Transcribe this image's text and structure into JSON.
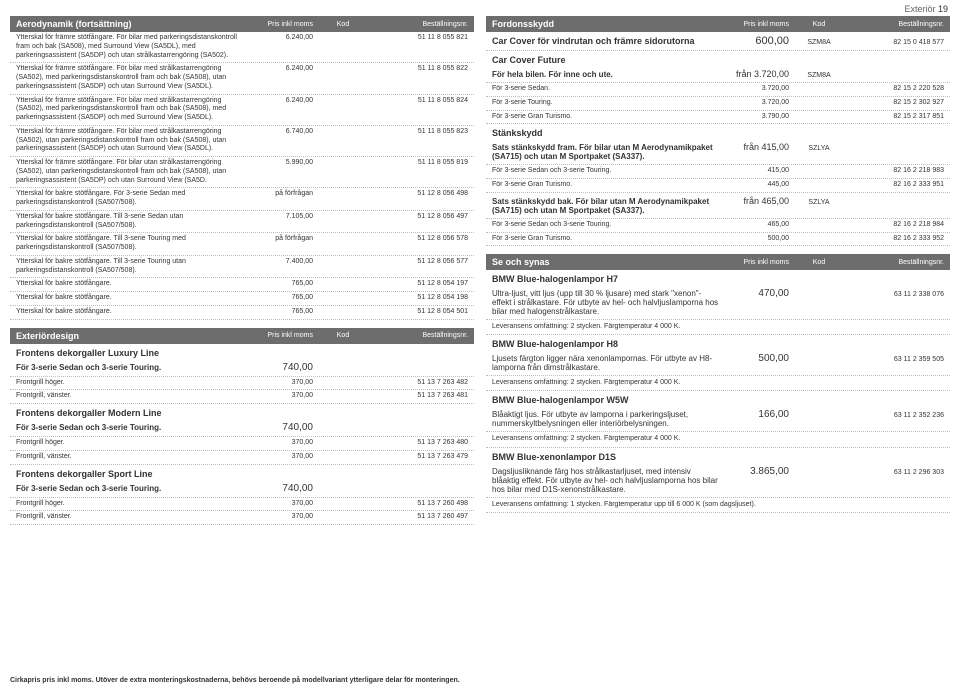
{
  "page_label": {
    "name": "Exteriör",
    "num": "19"
  },
  "footnote": "Cirkapris pris inkl moms. Utöver de extra monteringskostnaderna, behövs beroende på modellvariant ytterligare delar för monteringen.",
  "col_headers": {
    "price": "Pris inkl moms",
    "kod": "Kod",
    "best": "Beställningsnr."
  },
  "left": {
    "aero": {
      "title": "Aerodynamik (fortsättning)",
      "rows": [
        {
          "desc": "Ytterskal för främre stötfångare. För bilar med parkeringsdistanskontroll fram och bak (SA508), med Surround View (SA5DL), med parkeringsassistent (SA5DP) och utan strålkastarrengöring (SA502).",
          "price": "6.240,00",
          "kod": "",
          "best": "51 11 8 055 821"
        },
        {
          "desc": "Ytterskal för främre stötfångare. För bilar med strålkastarrengöring (SA502), med parkeringsdistanskontroll fram och bak (SA508), utan parkeringsassistent (SA5DP) och utan Surround View (SA5DL).",
          "price": "6.240,00",
          "kod": "",
          "best": "51 11 8 055 822"
        },
        {
          "desc": "Ytterskal för främre stötfångare. För bilar med strålkastarrengöring (SA502), med parkeringsdistanskontroll fram och bak (SA508), med parkeringsassistent (SA5DP) och med Surround View (SA5DL).",
          "price": "6.240,00",
          "kod": "",
          "best": "51 11 8 055 824"
        },
        {
          "desc": "Ytterskal för främre stötfångare. För bilar med strålkastarrengöring (SA502), utan parkeringsdistanskontroll fram och bak (SA508), utan parkeringsassistent (SA5DP) och utan Surround View (SA5DL).",
          "price": "6.740,00",
          "kod": "",
          "best": "51 11 8 055 823"
        },
        {
          "desc": "Ytterskal för främre stötfångare. För bilar utan strålkastarrengöring (SA502), utan parkeringsdistanskontroll fram och bak (SA508), utan parkeringsassistent (SA5DP) och utan Surround View (SA5D.",
          "price": "5.990,00",
          "kod": "",
          "best": "51 11 8 055 819"
        },
        {
          "desc": "Ytterskal för bakre stötfångare. För 3-serie Sedan med parkeringsdistanskontroll (SA507/508).",
          "price": "på förfrågan",
          "kod": "",
          "best": "51 12 8 056 498"
        },
        {
          "desc": "Ytterskal för bakre stötfångare. Till 3-serie Sedan utan parkeringsdistanskontroll (SA507/508).",
          "price": "7.105,00",
          "kod": "",
          "best": "51 12 8 056 497"
        },
        {
          "desc": "Ytterskal för bakre stötfångare. Till 3-serie Touring med parkeringsdistanskontroll (SA507/508).",
          "price": "på förfrågan",
          "kod": "",
          "best": "51 12 8 056 578"
        },
        {
          "desc": "Ytterskal för bakre stötfångare. Till 3-serie Touring utan parkeringsdistanskontroll (SA507/508).",
          "price": "7.400,00",
          "kod": "",
          "best": "51 12 8 056 577"
        },
        {
          "desc": "Ytterskal för bakre stötfångare.",
          "price": "765,00",
          "kod": "",
          "best": "51 12 8 054 197"
        },
        {
          "desc": "Ytterskal för bakre stötfångare.",
          "price": "765,00",
          "kod": "",
          "best": "51 12 8 054 198"
        },
        {
          "desc": "Ytterskal för bakre stötfångare.",
          "price": "765,00",
          "kod": "",
          "best": "51 12 8 054 501"
        }
      ]
    },
    "design": {
      "title": "Exteriördesign",
      "groups": [
        {
          "head": "Frontens dekorgaller Luxury Line",
          "sub": "För 3-serie Sedan och 3-serie Touring.",
          "subprice": "740,00",
          "rows": [
            {
              "desc": "Frontgrill höger.",
              "price": "370,00",
              "best": "51 13 7 263 482"
            },
            {
              "desc": "Frontgrill, vänster.",
              "price": "370,00",
              "best": "51 13 7 263 481"
            }
          ]
        },
        {
          "head": "Frontens dekorgaller Modern Line",
          "sub": "För 3-serie Sedan och 3-serie Touring.",
          "subprice": "740,00",
          "rows": [
            {
              "desc": "Frontgrill höger.",
              "price": "370,00",
              "best": "51 13 7 263 480"
            },
            {
              "desc": "Frontgrill, vänster.",
              "price": "370,00",
              "best": "51 13 7 263 479"
            }
          ]
        },
        {
          "head": "Frontens dekorgaller Sport Line",
          "sub": "För 3-serie Sedan och 3-serie Touring.",
          "subprice": "740,00",
          "rows": [
            {
              "desc": "Frontgrill höger.",
              "price": "370,00",
              "best": "51 13 7 260 498"
            },
            {
              "desc": "Frontgrill, vänster.",
              "price": "370,00",
              "best": "51 13 7 260 497"
            }
          ]
        }
      ]
    }
  },
  "right": {
    "fordon": {
      "title": "Fordonsskydd",
      "carcover": {
        "desc": "Car Cover för vindrutan och främre sidorutorna",
        "price": "600,00",
        "kod": "SZM8A",
        "best": "82 15 0 418 577"
      },
      "future": {
        "head": "Car Cover Future",
        "sub": {
          "desc": "För hela bilen. För inne och ute.",
          "price": "från 3.720,00",
          "kod": "SZM8A",
          "best": ""
        },
        "rows": [
          {
            "desc": "För 3-serie Sedan.",
            "price": "3.720,00",
            "best": "82 15 2 220 528"
          },
          {
            "desc": "För 3-serie Touring.",
            "price": "3.720,00",
            "best": "82 15 2 302 927"
          },
          {
            "desc": "För 3-serie Gran Turismo.",
            "price": "3.790,00",
            "best": "82 15 2 317 851"
          }
        ]
      },
      "stank": {
        "head": "Stänkskydd",
        "sub1": {
          "desc": "Sats stänkskydd fram. För bilar utan M Aerodynamikpaket (SA715) och utan M Sportpaket (SA337).",
          "price": "från 415,00",
          "kod": "SZLYA",
          "best": ""
        },
        "rows1": [
          {
            "desc": "För 3-serie Sedan och 3-serie Touring.",
            "price": "415,00",
            "best": "82 16 2 218 983"
          },
          {
            "desc": "För 3-serie Gran Turismo.",
            "price": "445,00",
            "best": "82 16 2 333 951"
          }
        ],
        "sub2": {
          "desc": "Sats stänkskydd bak. För bilar utan M Aerodynamikpaket (SA715) och utan M Sportpaket (SA337).",
          "price": "från 465,00",
          "kod": "SZLYA",
          "best": ""
        },
        "rows2": [
          {
            "desc": "För 3-serie Sedan och 3-serie Touring.",
            "price": "465,00",
            "best": "82 16 2 218 984"
          },
          {
            "desc": "För 3-serie Gran Turismo.",
            "price": "500,00",
            "best": "82 16 2 333 952"
          }
        ]
      }
    },
    "synas": {
      "title": "Se och synas",
      "groups": [
        {
          "head": "BMW Blue-halogenlampor H7",
          "para": "Ultra-ljust, vitt ljus (upp till 30 % ljusare) med stark \"xenon\"-effekt i strålkastare. För utbyte av hel- och halvljuslamporna hos bilar med halogenstrålkastare.",
          "note": "Leveransens omfattning: 2 stycken. Färgtemperatur 4 000 K.",
          "price": "470,00",
          "best": "63 11 2 338 076"
        },
        {
          "head": "BMW Blue-halogenlampor H8",
          "para": "Ljusets färgton ligger nära xenonlampornas. För utbyte av H8-lamporna från dimstrålkastare.",
          "note": "Leveransens omfattning: 2 stycken. Färgtemperatur 4 000 K.",
          "price": "500,00",
          "best": "63 11 2 359 505"
        },
        {
          "head": "BMW Blue-halogenlampor W5W",
          "para": "Blåaktigt ljus. För utbyte av lamporna i parkeringsljuset, nummerskyltbelysningen eller interiörbelysningen.",
          "note": "Leveransens omfattning: 2 stycken. Färgtemperatur 4 000 K.",
          "price": "166,00",
          "best": "63 11 2 352 236"
        },
        {
          "head": "BMW Blue-xenonlampor D1S",
          "para": "Dagsljusliknande färg hos strålkastarljuset, med intensiv blåaktig effekt. För utbyte av hel- och halvljuslamporna hos bilar hos bilar med D1S-xenonstrålkastare.",
          "note": "Leveransens omfattning: 1 stycken. Färgtemperatur upp till 6 000 K (som dagsljuset).",
          "price": "3.865,00",
          "best": "63 11 2 296 303"
        }
      ]
    }
  }
}
